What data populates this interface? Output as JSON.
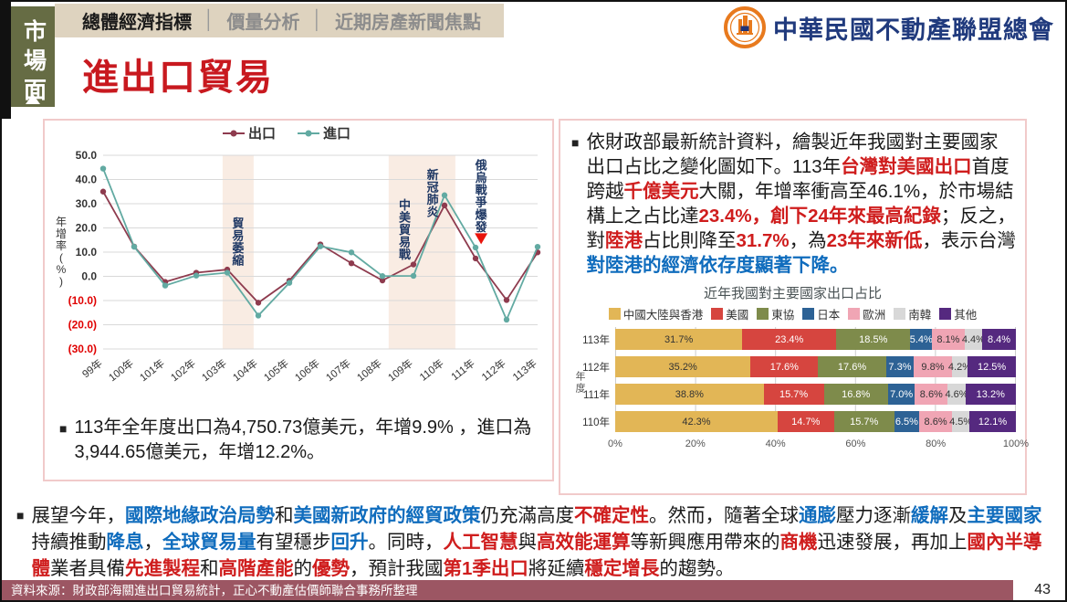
{
  "header": {
    "side_tab": "市場面",
    "tab_separator": "│",
    "tabs": [
      {
        "label": "總體經濟指標",
        "active": true
      },
      {
        "label": "價量分析",
        "active": false
      },
      {
        "label": "近期房產新聞焦點",
        "active": false
      }
    ],
    "logo_text": "中華民國不動產聯盟總會",
    "page_title": "進出口貿易"
  },
  "chart_data": [
    {
      "type": "line",
      "title": "",
      "categories": [
        "99年",
        "100年",
        "101年",
        "102年",
        "103年",
        "104年",
        "105年",
        "106年",
        "107年",
        "108年",
        "109年",
        "110年",
        "111年",
        "112年",
        "113年"
      ],
      "series": [
        {
          "name": "出口",
          "color": "#8e3b4e",
          "values": [
            35.0,
            12.3,
            -2.3,
            1.5,
            2.8,
            -10.9,
            -1.8,
            13.2,
            5.4,
            -1.7,
            4.9,
            29.3,
            7.4,
            -9.8,
            9.9
          ]
        },
        {
          "name": "進口",
          "color": "#62aaa2",
          "values": [
            44.5,
            12.2,
            -3.8,
            0.3,
            1.5,
            -16.2,
            -2.7,
            12.4,
            9.9,
            0.1,
            0.2,
            33.5,
            11.9,
            -17.9,
            12.2
          ]
        }
      ],
      "xlabel": "",
      "ylabel": "年增率(%)",
      "ylim": [
        -30,
        50
      ],
      "ytick_step": 10,
      "grid": true,
      "legend_position": "top",
      "band_color": "#f9ece3",
      "annotation_color": "#1f3864",
      "negative_tick_color": "#e00000",
      "shaded_bands": [
        {
          "from_index": 3.85,
          "to_index": 4.85
        },
        {
          "from_index": 9.2,
          "to_index": 11.35
        }
      ],
      "annotations": [
        {
          "text": "貿易萎縮",
          "x_index": 4.35,
          "y_value": 14
        },
        {
          "text": "中美貿易戰",
          "x_index": 9.72,
          "y_value": 19
        },
        {
          "text": "新冠肺炎",
          "x_index": 10.62,
          "y_value": 34
        },
        {
          "text": "俄烏戰爭爆發",
          "x_index": 12.18,
          "y_value": 33,
          "marker": "down-triangle",
          "marker_y_value": 15.5,
          "marker_color": "#e8140c"
        }
      ]
    },
    {
      "type": "stacked-bar-horizontal",
      "title": "近年我國對主要國家出口占比",
      "ylabel": "年度",
      "categories": [
        "113年",
        "112年",
        "111年",
        "110年"
      ],
      "series": [
        {
          "name": "中國大陸與香港",
          "color": "#e2b656",
          "label_color": "#333333",
          "values": [
            31.7,
            35.2,
            38.8,
            42.3
          ]
        },
        {
          "name": "美國",
          "color": "#d6453f",
          "label_color": "#ffffff",
          "values": [
            23.4,
            17.6,
            15.7,
            14.7
          ]
        },
        {
          "name": "東協",
          "color": "#7e8b4b",
          "label_color": "#ffffff",
          "values": [
            18.5,
            17.6,
            16.8,
            15.7
          ]
        },
        {
          "name": "日本",
          "color": "#2d6295",
          "label_color": "#ffffff",
          "values": [
            5.4,
            7.3,
            7.0,
            6.5
          ]
        },
        {
          "name": "歐洲",
          "color": "#f0a5b4",
          "label_color": "#333333",
          "values": [
            8.1,
            9.8,
            8.6,
            8.6
          ]
        },
        {
          "name": "南韓",
          "color": "#d8d8d8",
          "label_color": "#333333",
          "values": [
            4.4,
            4.2,
            4.6,
            4.5
          ]
        },
        {
          "name": "其他",
          "color": "#55297f",
          "label_color": "#ffffff",
          "values": [
            8.4,
            12.5,
            13.2,
            12.1
          ]
        }
      ],
      "value_suffix": "%",
      "xticks": [
        "0%",
        "20%",
        "40%",
        "60%",
        "80%",
        "100%"
      ]
    }
  ],
  "left_panel": {
    "bullet": "■",
    "note": "113年全年度出口為4,750.73億美元，年增9.9% ，進口為3,944.65億美元，年增12.2%。"
  },
  "right_panel": {
    "bullet": "■",
    "paragraph": [
      {
        "t": "依財政部最新統計資料，繪製近年我國對主要國家出口占比之變化圖如下。113年"
      },
      {
        "t": "台灣對美國出口",
        "c": "red",
        "b": true
      },
      {
        "t": "首度跨越"
      },
      {
        "t": "千億美元",
        "c": "red",
        "b": true
      },
      {
        "t": "大關，年增率衝高至46.1%，於市場結構上之占比達"
      },
      {
        "t": "23.4%，創下24年來最高紀錄",
        "c": "red",
        "b": true
      },
      {
        "t": "；反之，對"
      },
      {
        "t": "陸港",
        "c": "red",
        "b": true
      },
      {
        "t": "占比則降至"
      },
      {
        "t": "31.7%",
        "c": "red",
        "b": true
      },
      {
        "t": "，為"
      },
      {
        "t": "23年來新低",
        "c": "red",
        "b": true
      },
      {
        "t": "，表示台灣"
      },
      {
        "t": "對陸港的經濟依存度顯著下降。",
        "c": "blue",
        "b": true
      }
    ]
  },
  "summary": {
    "bullet": "■",
    "paragraph": [
      {
        "t": "展望今年，"
      },
      {
        "t": "國際地緣政治局勢",
        "c": "blue",
        "b": true
      },
      {
        "t": "和"
      },
      {
        "t": "美國新政府的經貿政策",
        "c": "blue",
        "b": true
      },
      {
        "t": "仍充滿高度"
      },
      {
        "t": "不確定性",
        "c": "red",
        "b": true
      },
      {
        "t": "。然而，隨著全球"
      },
      {
        "t": "通膨",
        "c": "blue",
        "b": true
      },
      {
        "t": "壓力逐漸"
      },
      {
        "t": "緩解",
        "c": "blue",
        "b": true
      },
      {
        "t": "及"
      },
      {
        "t": "主要國家",
        "c": "blue",
        "b": true
      },
      {
        "t": "持續推動"
      },
      {
        "t": "降息",
        "c": "blue",
        "b": true
      },
      {
        "t": "，"
      },
      {
        "t": "全球貿易量",
        "c": "blue",
        "b": true
      },
      {
        "t": "有望穩步"
      },
      {
        "t": "回升",
        "c": "blue",
        "b": true
      },
      {
        "t": "。同時，"
      },
      {
        "t": "人工智慧",
        "c": "red",
        "b": true
      },
      {
        "t": "與"
      },
      {
        "t": "高效能運算",
        "c": "red",
        "b": true
      },
      {
        "t": "等新興應用帶來的"
      },
      {
        "t": "商機",
        "c": "red",
        "b": true
      },
      {
        "t": "迅速發展，再加上"
      },
      {
        "t": "國內半導體",
        "c": "red",
        "b": true
      },
      {
        "t": "業者具備"
      },
      {
        "t": "先進製程",
        "c": "red",
        "b": true
      },
      {
        "t": "和"
      },
      {
        "t": "高階產能",
        "c": "red",
        "b": true
      },
      {
        "t": "的"
      },
      {
        "t": "優勢",
        "c": "red",
        "b": true
      },
      {
        "t": "，預計我國"
      },
      {
        "t": "第1季出口",
        "c": "red",
        "b": true
      },
      {
        "t": "將延續"
      },
      {
        "t": "穩定增長",
        "c": "red",
        "b": true
      },
      {
        "t": "的趨勢。"
      }
    ]
  },
  "footer": {
    "source": "資料來源：財政部海關進出口貿易統計，正心不動產估價師聯合事務所整理",
    "page": "43"
  }
}
